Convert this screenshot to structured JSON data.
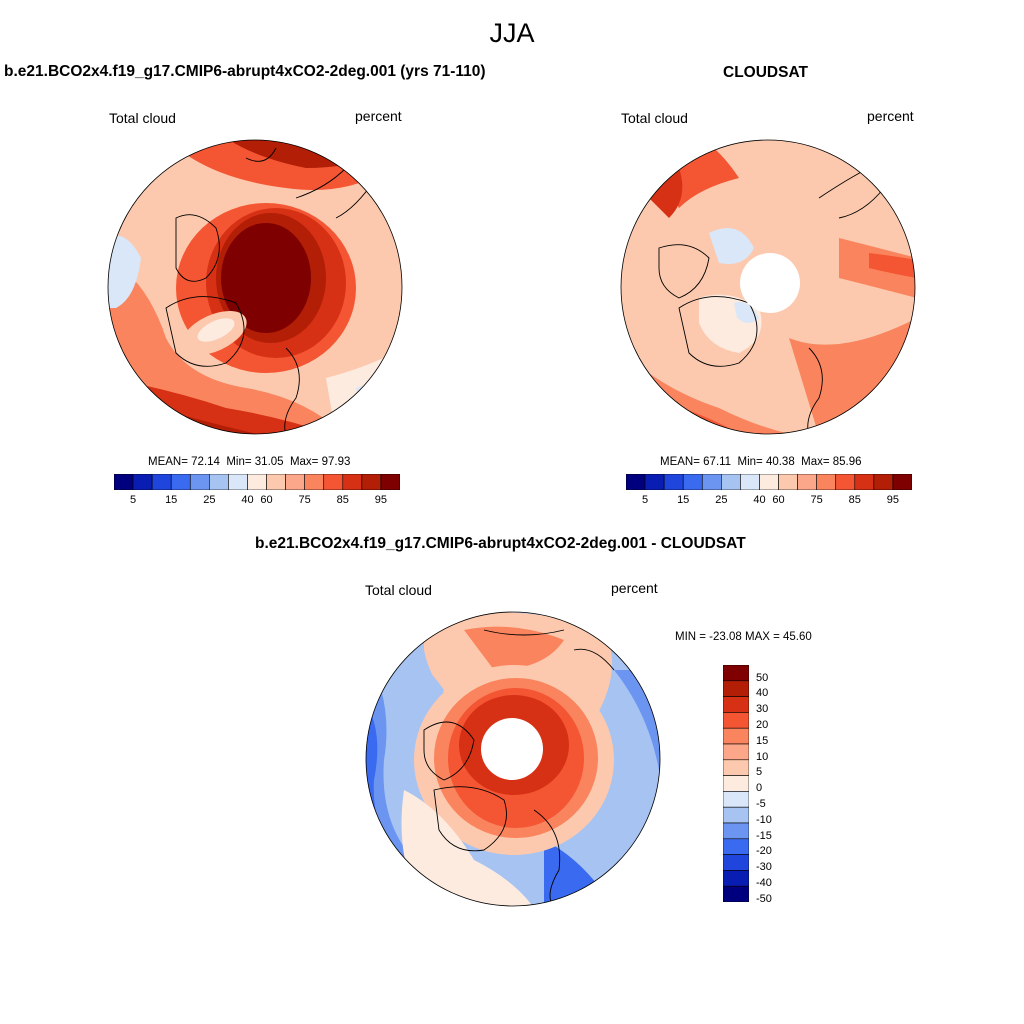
{
  "figure": {
    "title": "JJA"
  },
  "panels": [
    {
      "id": "model",
      "title": "b.e21.BCO2x4.f19_g17.CMIP6-abrupt4xCO2-2deg.001 (yrs 71-110)",
      "variable": "Total cloud",
      "units": "percent",
      "stats": {
        "mean_label": "MEAN=",
        "mean": "72.14",
        "min_label": "Min=",
        "min": "31.05",
        "max_label": "Max=",
        "max": "97.93"
      },
      "polar_hole": false
    },
    {
      "id": "obs",
      "title": "CLOUDSAT",
      "variable": "Total cloud",
      "units": "percent",
      "stats": {
        "mean_label": "MEAN=",
        "mean": "67.11",
        "min_label": "Min=",
        "min": "40.38",
        "max_label": "Max=",
        "max": "85.96"
      },
      "polar_hole": true
    },
    {
      "id": "diff",
      "title": "b.e21.BCO2x4.f19_g17.CMIP6-abrupt4xCO2-2deg.001 - CLOUDSAT",
      "variable": "Total cloud",
      "units": "percent",
      "stats_text": "MIN = -23.08 MAX =  45.60",
      "polar_hole": true
    }
  ],
  "colorbars": {
    "abs": {
      "colors": [
        "#00007f",
        "#0a1db3",
        "#1f45dd",
        "#3a6af0",
        "#6b95f0",
        "#a6c3f2",
        "#d9e7f8",
        "#fdebe0",
        "#fcc9ae",
        "#fca789",
        "#f9845e",
        "#f45533",
        "#d73115",
        "#b31e07",
        "#7f0000"
      ],
      "ticks": [
        "5",
        "15",
        "25",
        "40",
        "60",
        "75",
        "85",
        "95"
      ]
    },
    "diff": {
      "colors_top_to_bottom": [
        "#7f0000",
        "#b31e07",
        "#d73115",
        "#f45533",
        "#f9845e",
        "#fca789",
        "#fcc9ae",
        "#fdebe0",
        "#d9e7f8",
        "#a6c3f2",
        "#6b95f0",
        "#3a6af0",
        "#1f45dd",
        "#0a1db3",
        "#00007f"
      ],
      "ticks": [
        "50",
        "40",
        "30",
        "20",
        "15",
        "10",
        "5",
        "0",
        "-5",
        "-10",
        "-15",
        "-20",
        "-30",
        "-40",
        "-50"
      ]
    }
  },
  "map_palette": {
    "water_ring_light": "#fdebe0",
    "dark_red": "#7f0000",
    "red": "#d73115",
    "orange": "#f9845e",
    "salmon": "#fcc9ae",
    "light_blue": "#d9e7f8",
    "blue": "#6b95f0",
    "deep_blue": "#3a6af0"
  }
}
